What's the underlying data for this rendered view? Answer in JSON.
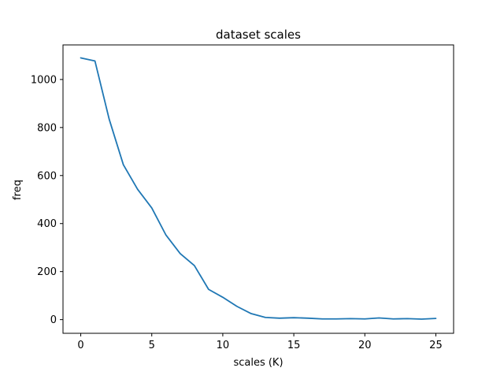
{
  "chart_data": {
    "type": "line",
    "title": "dataset scales",
    "xlabel": "scales (K)",
    "ylabel": "freq",
    "xlim": [
      -1.25,
      26.25
    ],
    "ylim": [
      -57,
      1144
    ],
    "xticks": [
      0,
      5,
      10,
      15,
      20,
      25
    ],
    "yticks": [
      0,
      200,
      400,
      600,
      800,
      1000
    ],
    "grid": false,
    "series": [
      {
        "color": "#1f77b4",
        "x": [
          0,
          1,
          2,
          3,
          4,
          5,
          6,
          7,
          8,
          9,
          10,
          11,
          12,
          13,
          14,
          15,
          16,
          17,
          18,
          19,
          20,
          21,
          22,
          23,
          24,
          25
        ],
        "y": [
          1090,
          1077,
          835,
          645,
          543,
          465,
          352,
          275,
          225,
          126,
          93,
          55,
          25,
          9,
          6,
          8,
          6,
          3,
          3,
          4,
          3,
          7,
          3,
          4,
          2,
          5
        ]
      }
    ]
  }
}
